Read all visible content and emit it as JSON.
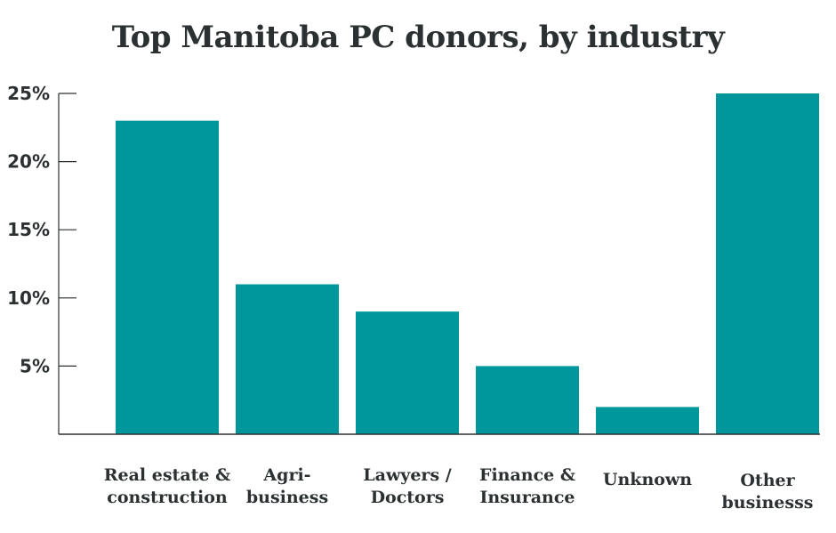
{
  "colors": {
    "bar": "#00979c",
    "axis": "#2b3133",
    "text": "#2b3133"
  },
  "chart_data": {
    "type": "bar",
    "title": "Top Manitoba PC donors, by industry",
    "xlabel": "",
    "ylabel": "",
    "ylim": [
      0,
      25
    ],
    "yticks": [
      5,
      10,
      15,
      20,
      25
    ],
    "ytick_labels": [
      "5%",
      "10%",
      "15%",
      "20%",
      "25%"
    ],
    "categories": [
      [
        "Real estate &",
        "construction"
      ],
      [
        "Agri-",
        "business"
      ],
      [
        "Lawyers /",
        "Doctors"
      ],
      [
        "Finance &",
        "Insurance"
      ],
      [
        "Unknown"
      ],
      [
        "Other",
        "businesss"
      ]
    ],
    "values": [
      23,
      11,
      9,
      5,
      2,
      25
    ],
    "unit": "%",
    "grid": false,
    "legend": "none"
  }
}
